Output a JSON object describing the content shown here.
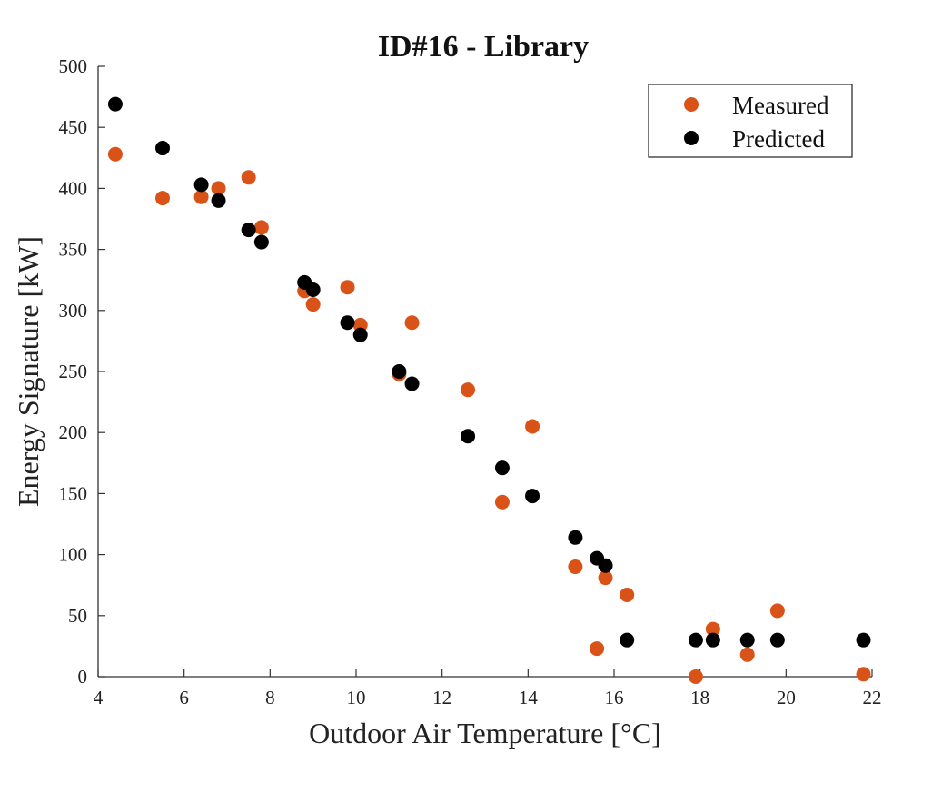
{
  "chart_data": {
    "type": "scatter",
    "title": "ID#16 - Library",
    "xlabel": "Outdoor Air Temperature [°C]",
    "ylabel": "Energy Signature [kW]",
    "xlim": [
      4,
      22
    ],
    "ylim": [
      0,
      500
    ],
    "xticks": [
      4,
      6,
      8,
      10,
      12,
      14,
      16,
      18,
      20,
      22
    ],
    "yticks": [
      0,
      50,
      100,
      150,
      200,
      250,
      300,
      350,
      400,
      450,
      500
    ],
    "grid": false,
    "legend_position": "top-right",
    "series": [
      {
        "name": "Measured",
        "color": "#d95319",
        "points": [
          [
            4.4,
            428
          ],
          [
            5.5,
            392
          ],
          [
            6.4,
            393
          ],
          [
            6.8,
            400
          ],
          [
            7.5,
            409
          ],
          [
            7.8,
            368
          ],
          [
            8.8,
            316
          ],
          [
            9.0,
            305
          ],
          [
            9.8,
            319
          ],
          [
            10.1,
            288
          ],
          [
            11.0,
            248
          ],
          [
            11.3,
            290
          ],
          [
            12.6,
            235
          ],
          [
            13.4,
            143
          ],
          [
            14.1,
            205
          ],
          [
            15.1,
            90
          ],
          [
            15.6,
            23
          ],
          [
            15.8,
            81
          ],
          [
            16.3,
            67
          ],
          [
            17.9,
            0
          ],
          [
            18.3,
            39
          ],
          [
            19.1,
            18
          ],
          [
            19.8,
            54
          ],
          [
            21.8,
            2
          ]
        ]
      },
      {
        "name": "Predicted",
        "color": "#000000",
        "points": [
          [
            4.4,
            469
          ],
          [
            5.5,
            433
          ],
          [
            6.4,
            403
          ],
          [
            6.8,
            390
          ],
          [
            7.5,
            366
          ],
          [
            7.8,
            356
          ],
          [
            8.8,
            323
          ],
          [
            9.0,
            317
          ],
          [
            9.8,
            290
          ],
          [
            10.1,
            280
          ],
          [
            11.0,
            250
          ],
          [
            11.3,
            240
          ],
          [
            12.6,
            197
          ],
          [
            13.4,
            171
          ],
          [
            14.1,
            148
          ],
          [
            15.1,
            114
          ],
          [
            15.6,
            97
          ],
          [
            15.8,
            91
          ],
          [
            16.3,
            30
          ],
          [
            17.9,
            30
          ],
          [
            18.3,
            30
          ],
          [
            19.1,
            30
          ],
          [
            19.8,
            30
          ],
          [
            21.8,
            30
          ]
        ]
      }
    ]
  }
}
